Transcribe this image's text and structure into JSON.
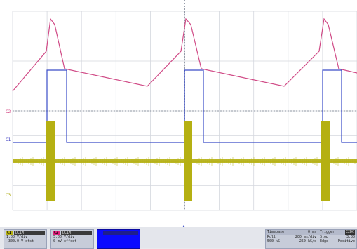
{
  "screen": {
    "channel_markers": [
      {
        "label": "C2",
        "color": "#d03c7c"
      },
      {
        "label": "C1",
        "color": "#3c3cc0"
      },
      {
        "label": "C3",
        "color": "#a8a400"
      }
    ]
  },
  "traces": {
    "c1_color": "#3a4cc8",
    "c2_color": "#d04a86",
    "c3_color": "#b5b012"
  },
  "status": {
    "channels": [
      {
        "tag": "C1",
        "tag_color": "#b5b012",
        "coupling": "DC1M",
        "scale": "1.00 V/div",
        "offset": "-300.0 V ofst"
      },
      {
        "tag": "C2",
        "tag_color": "#e0207c",
        "coupling": "DC1M",
        "scale": "5.00 V/div",
        "offset": "0 mV offset"
      },
      {
        "tag": "",
        "tag_color": "#0a0aff",
        "coupling": "",
        "scale": "",
        "offset": ""
      }
    ],
    "timebase": {
      "title": "Timebase",
      "title_value": "0 ms",
      "row1_label": "Roll",
      "row1_value": "200 ms/div",
      "row2_label": "500 kS",
      "row2_value": "250 kS/s"
    },
    "trigger": {
      "title": "Trigger",
      "title_value": "C2DC",
      "row1_label": "Stop",
      "row1_value": "3.00",
      "row2_label": "Edge",
      "row2_value": "Positive"
    }
  }
}
